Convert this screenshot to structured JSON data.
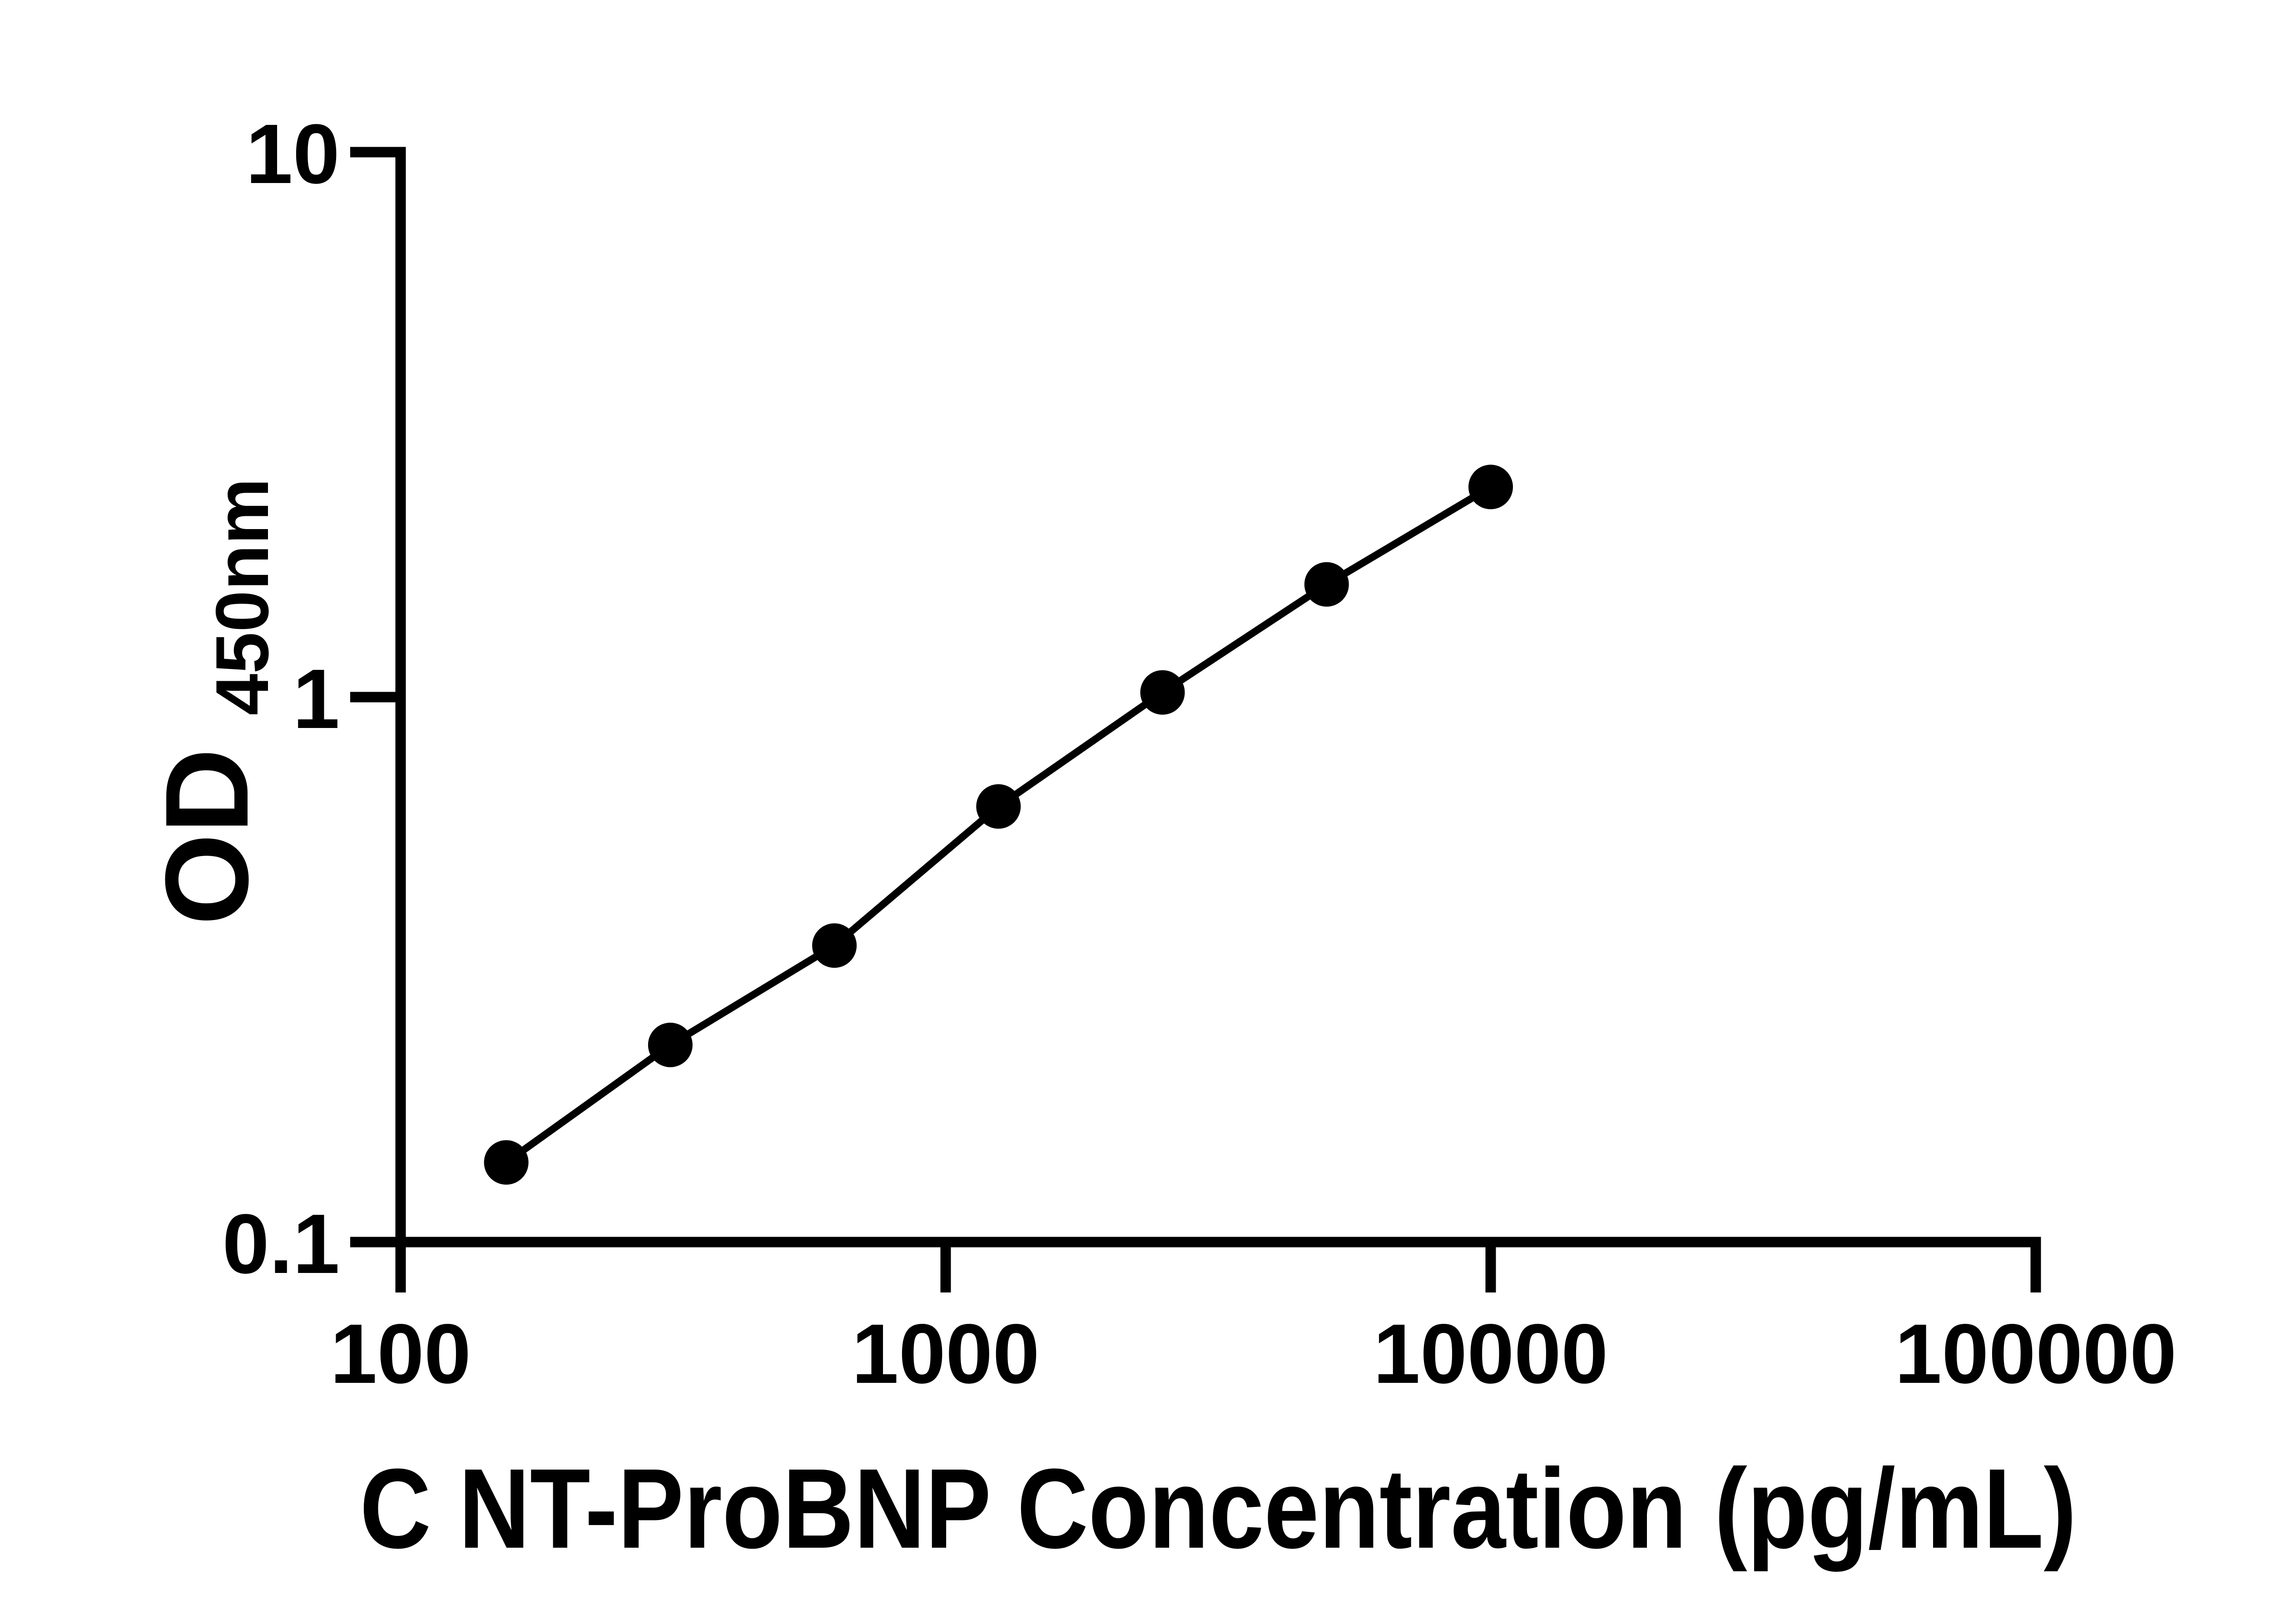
{
  "figure": {
    "background_color": "#ffffff",
    "foreground_color": "#000000"
  },
  "chart_data": {
    "type": "scatter",
    "subtype": "log-log standard curve with connecting line",
    "title": "",
    "xlabel": "C NT-ProBNP Concentration (pg/mL)",
    "ylabel_main": "OD",
    "ylabel_sub": "450nm",
    "x_scale": "log10",
    "y_scale": "log10",
    "xlim": [
      100,
      100000
    ],
    "ylim": [
      0.1,
      10
    ],
    "x_ticks": [
      100,
      1000,
      10000,
      100000
    ],
    "x_tick_labels": [
      "100",
      "1000",
      "10000",
      "100000"
    ],
    "y_ticks": [
      10,
      1,
      0.1
    ],
    "y_tick_labels": [
      "10",
      "1",
      "0.1"
    ],
    "grid": false,
    "legend": null,
    "marker": "filled-circle",
    "marker_color": "#000000",
    "line_color": "#000000",
    "series": [
      {
        "points": [
          {
            "x": 156.25,
            "y": 0.14
          },
          {
            "x": 312.5,
            "y": 0.23
          },
          {
            "x": 625,
            "y": 0.35
          },
          {
            "x": 1250,
            "y": 0.63
          },
          {
            "x": 2500,
            "y": 1.02
          },
          {
            "x": 5000,
            "y": 1.61
          },
          {
            "x": 10000,
            "y": 2.43
          }
        ]
      }
    ]
  }
}
